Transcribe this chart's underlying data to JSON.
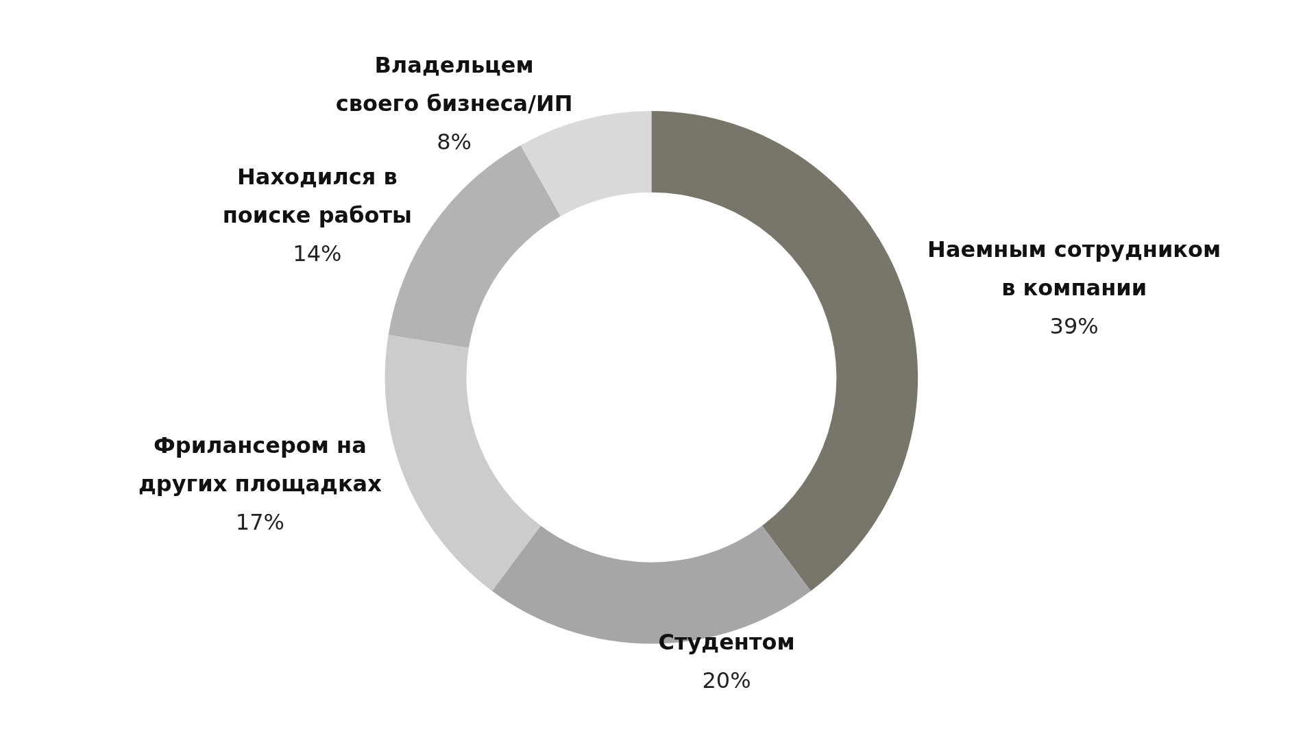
{
  "chart_data": {
    "type": "donut",
    "categories": [
      "Наемным сотрудником в компании",
      "Студентом",
      "Фрилансером на других площадках",
      "Находился в поиске работы",
      "Владельцем своего бизнеса/ИП"
    ],
    "values": [
      39,
      20,
      17,
      14,
      8
    ],
    "value_labels": [
      "39%",
      "20%",
      "17%",
      "14%",
      "8%"
    ],
    "colors": [
      "#78756a",
      "#a6a6a6",
      "#cbcccb",
      "#b3b3b3",
      "#d9d9d9"
    ],
    "legend": false
  }
}
